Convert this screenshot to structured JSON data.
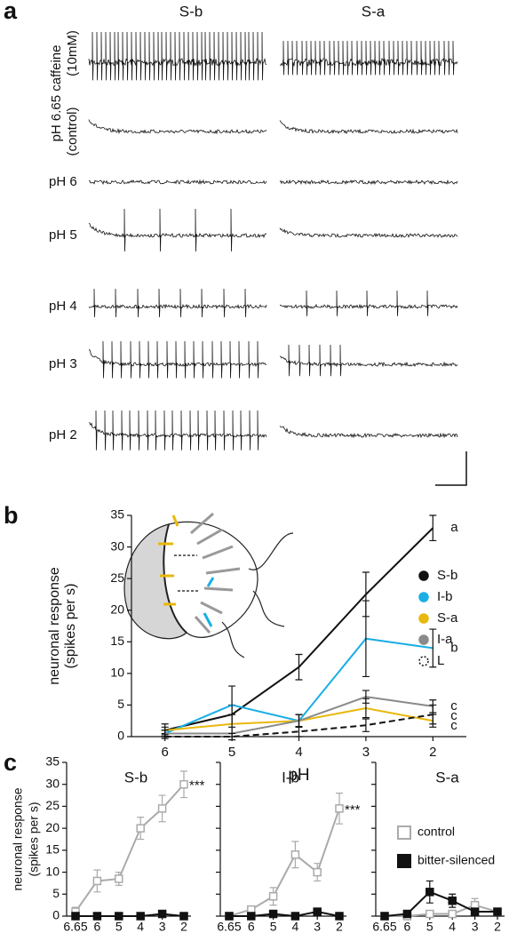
{
  "panel_labels": [
    "a",
    "b",
    "c"
  ],
  "panel_a": {
    "columns": [
      "S-b",
      "S-a"
    ],
    "row_label_main": "pH 6.65 caffeine",
    "row_label_control": "(control)",
    "row_label_caffeine": "(10mM)",
    "rows": [
      "pH 6",
      "pH 5",
      "pH 4",
      "pH 3",
      "pH 2"
    ]
  },
  "chart_data": [
    {
      "type": "line",
      "x": [
        6,
        5,
        4,
        3,
        2
      ],
      "xlim": [
        6.5,
        1.5
      ],
      "xticks": [
        6,
        5,
        4,
        3,
        2
      ],
      "ylim": [
        0,
        35
      ],
      "yticks": [
        0,
        5,
        10,
        15,
        20,
        25,
        30,
        35
      ],
      "x_label": "pH",
      "y_label": [
        "neuronal response",
        "(spikes per s)"
      ],
      "legend": "right",
      "series": [
        {
          "name": "S-b",
          "color": "#111111",
          "values": [
            1,
            3.5,
            11,
            22.5,
            33
          ],
          "errors": [
            1,
            1.5,
            2,
            3.5,
            2
          ],
          "annotation": "a"
        },
        {
          "name": "I-b",
          "color": "#1aaee6",
          "values": [
            0.5,
            5,
            2.5,
            15.5,
            14
          ],
          "errors": [
            0.5,
            3,
            1,
            6,
            3
          ],
          "annotation": "b"
        },
        {
          "name": "S-a",
          "color": "#e8b80c",
          "values": [
            1,
            2,
            2.5,
            4.5,
            2.5
          ],
          "errors": [
            0.5,
            1.5,
            1,
            1.5,
            1
          ],
          "annotation": "c"
        },
        {
          "name": "I-a",
          "color": "#8a8a8a",
          "values": [
            0.5,
            0.5,
            2.5,
            6.3,
            4.8
          ],
          "errors": [
            0.5,
            1,
            1,
            1,
            1
          ],
          "annotation": "c"
        },
        {
          "name": "L",
          "color": "#111111",
          "values": [
            0,
            0,
            0.8,
            1.8,
            3.5
          ],
          "errors": [
            0.3,
            0.5,
            0.8,
            1,
            1.5
          ],
          "annotation": "c",
          "style": "dashed"
        }
      ]
    },
    {
      "type": "line",
      "title": "S-b",
      "categories": [
        "6.65",
        "6",
        "5",
        "4",
        "3",
        "2"
      ],
      "x_note": "(control)",
      "x_label": "pH",
      "ylim": [
        0,
        35
      ],
      "yticks": [
        0,
        5,
        10,
        15,
        20,
        25,
        30,
        35
      ],
      "y_label": [
        "neuronal response",
        "(spikes per s)"
      ],
      "series": [
        {
          "color": "#aaaaaa",
          "marker": "open-square",
          "values": [
            1,
            8,
            8.5,
            20,
            24.5,
            30
          ],
          "errors": [
            1,
            2.5,
            1.5,
            2.5,
            3,
            3
          ],
          "annotation": "***"
        },
        {
          "color": "#111111",
          "marker": "square",
          "values": [
            0,
            0,
            0,
            0,
            0.5,
            0
          ],
          "errors": [
            0.3,
            0.3,
            0.3,
            0.3,
            0.5,
            0.3
          ]
        }
      ]
    },
    {
      "type": "line",
      "title": "I-b",
      "categories": [
        "6.65",
        "6",
        "5",
        "4",
        "3",
        "2"
      ],
      "x_note": "(control)",
      "x_label": "pH",
      "ylim": [
        0,
        35
      ],
      "yticks": [
        0,
        5,
        10,
        15,
        20,
        25,
        30,
        35
      ],
      "y_tick_labels": false,
      "series": [
        {
          "color": "#aaaaaa",
          "marker": "open-square",
          "values": [
            0,
            1.5,
            4.5,
            14,
            10,
            24.5
          ],
          "errors": [
            0.3,
            0.8,
            2,
            3,
            2,
            3.5
          ],
          "annotation": "***"
        },
        {
          "color": "#111111",
          "marker": "square",
          "values": [
            0,
            0,
            0.5,
            0,
            1,
            0
          ],
          "errors": [
            0.3,
            0.3,
            0.5,
            0.3,
            0.5,
            0.3
          ]
        }
      ]
    },
    {
      "type": "line",
      "title": "S-a",
      "categories": [
        "6.65",
        "6",
        "5",
        "4",
        "3",
        "2"
      ],
      "x_note": "(control)",
      "x_label": "pH",
      "ylim": [
        0,
        35
      ],
      "yticks": [
        0,
        5,
        10,
        15,
        20,
        25,
        30,
        35
      ],
      "y_tick_labels": false,
      "legend": "right",
      "series": [
        {
          "name": "control",
          "color": "#aaaaaa",
          "marker": "open-square",
          "values": [
            0,
            0,
            0.5,
            0.5,
            2.5,
            1
          ],
          "errors": [
            0.3,
            0.3,
            0.5,
            0.5,
            1.5,
            0.5
          ]
        },
        {
          "name": "bitter-silenced",
          "color": "#111111",
          "marker": "square",
          "values": [
            0,
            0.5,
            5.5,
            3.5,
            1,
            1
          ],
          "errors": [
            0.3,
            0.5,
            2.5,
            1.5,
            0.8,
            0.5
          ]
        }
      ]
    }
  ]
}
